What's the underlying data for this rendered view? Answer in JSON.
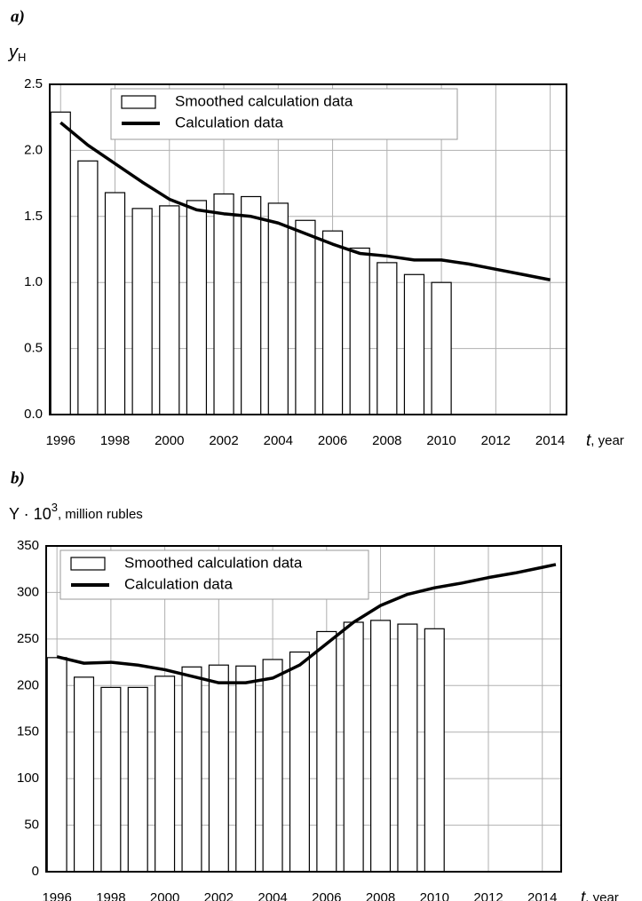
{
  "chart_data": [
    {
      "type": "combo",
      "panel": "a)",
      "ylabel": [
        "y",
        "H"
      ],
      "xlabel": [
        "t",
        ", year"
      ],
      "xlim": [
        1995.6,
        2014.6
      ],
      "xticks": [
        1996,
        1998,
        2000,
        2002,
        2004,
        2006,
        2008,
        2010,
        2012,
        2014
      ],
      "ylim": [
        0,
        2.5
      ],
      "yticks": [
        {
          "value": 0,
          "label": "0.0"
        },
        0.5,
        {
          "value": 1,
          "label": "1.0"
        },
        1.5,
        {
          "value": 2,
          "label": "2.0"
        },
        2.5
      ],
      "grid": true,
      "series": [
        {
          "name": "Smoothed calculation data",
          "type": "bar",
          "color": "#ffffff",
          "x": [
            1996,
            1997,
            1998,
            1999,
            2000,
            2001,
            2002,
            2003,
            2004,
            2005,
            2006,
            2007,
            2008,
            2009,
            2010
          ],
          "values": [
            2.29,
            1.92,
            1.68,
            1.56,
            1.58,
            1.62,
            1.67,
            1.65,
            1.6,
            1.47,
            1.39,
            1.26,
            1.15,
            1.06,
            1.0
          ]
        },
        {
          "name": "Calculation data",
          "type": "line",
          "color": "#000000",
          "x": [
            1996,
            1997,
            1998,
            1999,
            2000,
            2001,
            2002,
            2003,
            2004,
            2005,
            2006,
            2007,
            2008,
            2009,
            2010,
            2011,
            2012,
            2013,
            2014
          ],
          "values": [
            2.21,
            2.04,
            1.9,
            1.76,
            1.63,
            1.55,
            1.52,
            1.5,
            1.45,
            1.37,
            1.29,
            1.22,
            1.2,
            1.17,
            1.17,
            1.14,
            1.1,
            1.06,
            1.02
          ]
        }
      ]
    },
    {
      "type": "combo",
      "panel": "b)",
      "ylabel": [
        "Y · 10",
        "3",
        ", million rubles"
      ],
      "xlabel": [
        "t",
        ", year"
      ],
      "xlim": [
        1995.6,
        2014.7
      ],
      "xticks": [
        1996,
        1998,
        2000,
        2002,
        2004,
        2006,
        2008,
        2010,
        2012,
        2014
      ],
      "ylim": [
        0,
        350
      ],
      "yticks": [
        0,
        50,
        100,
        150,
        200,
        250,
        300,
        350
      ],
      "grid": true,
      "series": [
        {
          "name": "Smoothed calculation data",
          "type": "bar",
          "color": "#ffffff",
          "x": [
            1996,
            1997,
            1998,
            1999,
            2000,
            2001,
            2002,
            2003,
            2004,
            2005,
            2006,
            2007,
            2008,
            2009,
            2010
          ],
          "values": [
            230,
            209,
            198,
            198,
            210,
            220,
            222,
            221,
            228,
            236,
            258,
            268,
            270,
            266,
            261
          ]
        },
        {
          "name": "Calculation data",
          "type": "line",
          "color": "#000000",
          "x": [
            1996,
            1997,
            1998,
            1999,
            2000,
            2001,
            2002,
            2003,
            2004,
            2005,
            2006,
            2007,
            2008,
            2009,
            2010,
            2011,
            2012,
            2013,
            2014,
            2014.5
          ],
          "values": [
            231,
            224,
            225,
            222,
            217,
            210,
            203,
            203,
            208,
            222,
            245,
            268,
            286,
            298,
            305,
            310,
            316,
            321,
            327,
            330
          ]
        }
      ]
    }
  ]
}
